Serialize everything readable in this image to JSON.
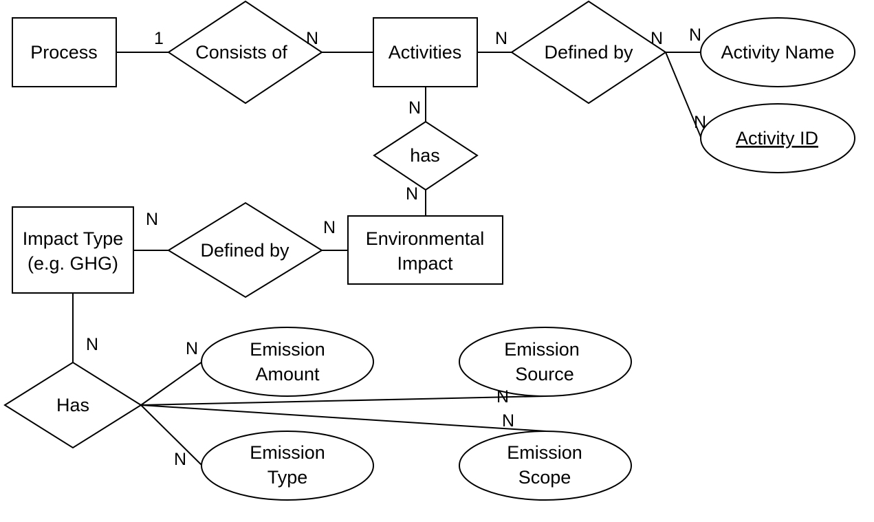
{
  "entities": {
    "process": "Process",
    "activities": "Activities",
    "environmental_impact": [
      "Environmental",
      "Impact"
    ],
    "impact_type": [
      "Impact Type",
      "(e.g. GHG)"
    ]
  },
  "relationships": {
    "consists_of": "Consists of",
    "defined_by_activity": "Defined by",
    "has_impact": "has",
    "defined_by_impact": "Defined by",
    "has_emission": "Has"
  },
  "attributes": {
    "activity_name": "Activity Name",
    "activity_id": "Activity ID",
    "emission_amount": [
      "Emission",
      "Amount"
    ],
    "emission_source": [
      "Emission",
      "Source"
    ],
    "emission_type": [
      "Emission",
      "Type"
    ],
    "emission_scope": [
      "Emission",
      "Scope"
    ]
  },
  "cardinalities": {
    "process_consists": "1",
    "consists_activities": "N",
    "activities_defined": "N",
    "defined_name_a": "N",
    "defined_name_b": "N",
    "defined_id": "N",
    "activities_has": "N",
    "has_environmental": "N",
    "impacttype_defined": "N",
    "defined_environmental": "N",
    "impacttype_has": "N",
    "has_amount": "N",
    "has_source": "N",
    "has_scope": "N",
    "has_type": "N"
  }
}
